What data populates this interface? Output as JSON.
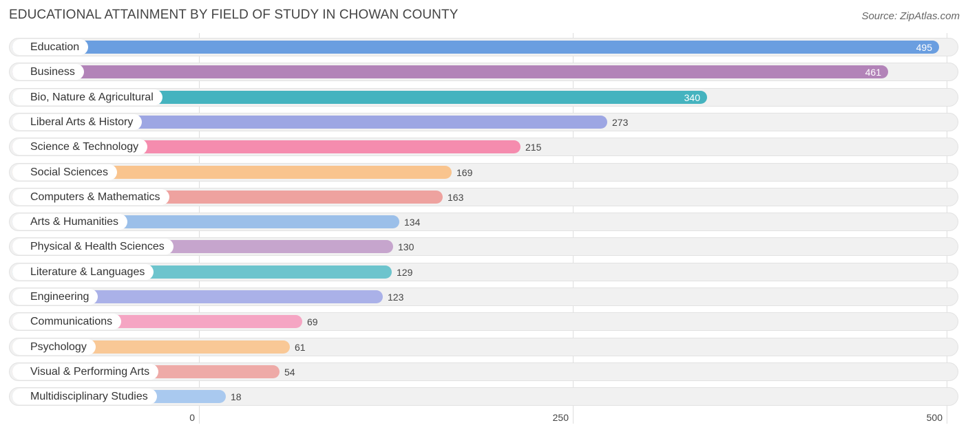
{
  "colors": {
    "education": "#6a9ee0",
    "business": "#b283b8",
    "bio": "#45b3bf",
    "liberal": "#9da6e3",
    "science": "#f58cae",
    "social": "#f9c48e",
    "computers": "#eea29f",
    "arts": "#9bbfe9",
    "physical": "#c6a5cd",
    "literature": "#6dc4cd",
    "engineering": "#aab1e8",
    "communications": "#f5a5c3",
    "psychology": "#f9c896",
    "visual": "#eeaaa7",
    "multidisciplinary": "#a9c9ef"
  },
  "chart_data": {
    "type": "bar",
    "orientation": "horizontal",
    "title": "EDUCATIONAL ATTAINMENT BY FIELD OF STUDY IN CHOWAN COUNTY",
    "source": "Source: ZipAtlas.com",
    "xlim": [
      0,
      500
    ],
    "ticks": [
      {
        "value": 0,
        "label": "0"
      },
      {
        "value": 250,
        "label": "250"
      },
      {
        "value": 500,
        "label": "500"
      }
    ],
    "categories": [
      "Education",
      "Business",
      "Bio, Nature & Agricultural",
      "Liberal Arts & History",
      "Science & Technology",
      "Social Sciences",
      "Computers & Mathematics",
      "Arts & Humanities",
      "Physical & Health Sciences",
      "Literature & Languages",
      "Engineering",
      "Communications",
      "Psychology",
      "Visual & Performing Arts",
      "Multidisciplinary Studies"
    ],
    "values": [
      495,
      461,
      340,
      273,
      215,
      169,
      163,
      134,
      130,
      129,
      123,
      69,
      61,
      54,
      18
    ],
    "value_labels": [
      "495",
      "461",
      "340",
      "273",
      "215",
      "169",
      "163",
      "134",
      "130",
      "129",
      "123",
      "69",
      "61",
      "54",
      "18"
    ],
    "color_keys": [
      "education",
      "business",
      "bio",
      "liberal",
      "science",
      "social",
      "computers",
      "arts",
      "physical",
      "literature",
      "engineering",
      "communications",
      "psychology",
      "visual",
      "multidisciplinary"
    ]
  }
}
